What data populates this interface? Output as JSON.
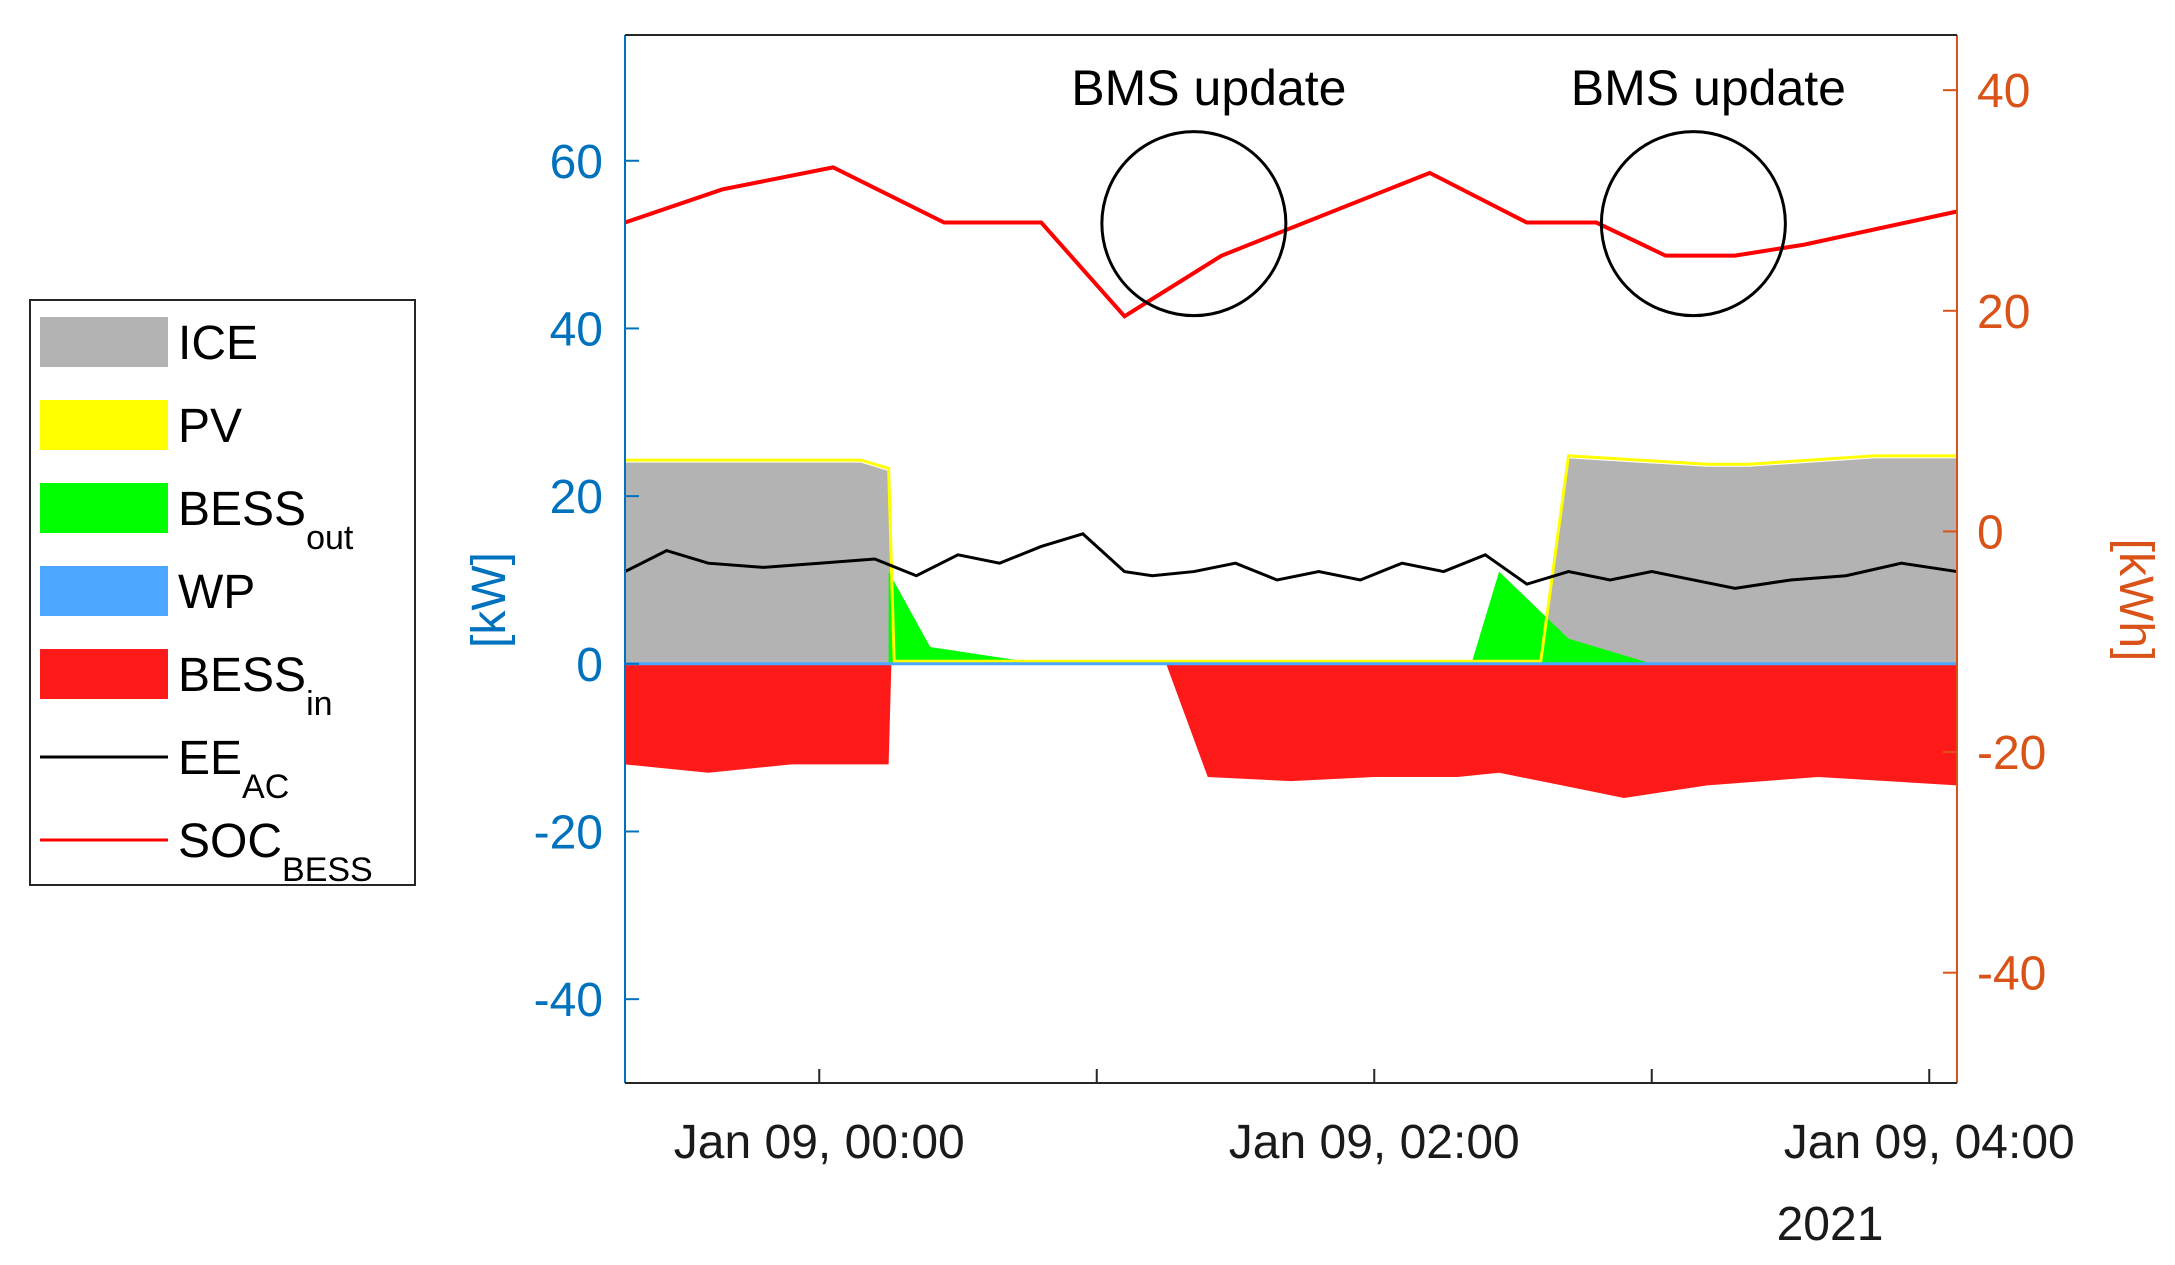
{
  "chart_data": {
    "type": "area",
    "xlabel_year": "2021",
    "x_ticks": [
      "Jan 09, 00:00",
      "Jan 09, 02:00",
      "Jan 09, 04:00"
    ],
    "y_left": {
      "label": "[kW]",
      "ticks": [
        -40,
        -20,
        0,
        20,
        40,
        60
      ],
      "lim": [
        -50,
        75
      ],
      "color": "#0072BD"
    },
    "y_right": {
      "label": "[kWh]",
      "ticks": [
        -40,
        -20,
        0,
        20,
        40
      ],
      "lim": [
        -50,
        45
      ],
      "color": "#D95319"
    },
    "x_range_hours": [
      -0.7,
      4.1
    ],
    "annotations": [
      {
        "text": "BMS update",
        "x_hours": 1.35,
        "y_kw": 52.5
      },
      {
        "text": "BMS update",
        "x_hours": 3.15,
        "y_kw": 52.5
      }
    ],
    "legend": [
      {
        "key": "ICE",
        "label": "ICE",
        "sub": "",
        "kind": "patch",
        "color": "#b3b3b3"
      },
      {
        "key": "PV",
        "label": "PV",
        "sub": "",
        "kind": "patch",
        "color": "#ffff00"
      },
      {
        "key": "BESSout",
        "label": "BESS",
        "sub": "out",
        "kind": "patch",
        "color": "#00ff00"
      },
      {
        "key": "WP",
        "label": "WP",
        "sub": "",
        "kind": "patch",
        "color": "#4da6ff"
      },
      {
        "key": "BESSin",
        "label": "BESS",
        "sub": "in",
        "kind": "patch",
        "color": "#ff1a1a"
      },
      {
        "key": "EEAC",
        "label": "EE",
        "sub": "AC",
        "kind": "line",
        "color": "#000000"
      },
      {
        "key": "SOC",
        "label": "SOC",
        "sub": "BESS",
        "kind": "line",
        "color": "#ff0000"
      }
    ],
    "series": [
      {
        "name": "ICE",
        "axis": "left",
        "x_hours": [
          -0.7,
          -0.4,
          -0.15,
          0.15,
          0.25,
          0.27,
          2.6,
          2.7,
          3.2,
          3.35,
          3.8,
          4.1
        ],
        "values": [
          24,
          24,
          24,
          24,
          23,
          0,
          0,
          24.5,
          23.5,
          23.5,
          24.5,
          24.5
        ]
      },
      {
        "name": "PV",
        "axis": "left",
        "x_hours": [
          -0.7,
          0.25,
          0.27,
          2.6,
          2.7,
          4.1
        ],
        "values": [
          0.3,
          0.3,
          0,
          0,
          0.4,
          0.4
        ]
      },
      {
        "name": "BESS_out",
        "axis": "left",
        "x_hours": [
          0.25,
          0.4,
          0.8,
          1.2,
          1.6,
          2.0,
          2.35,
          2.45,
          2.7,
          3.0,
          3.3,
          3.6
        ],
        "values": [
          11,
          2,
          0,
          0,
          0,
          0,
          0,
          11,
          3,
          0,
          0,
          0
        ]
      },
      {
        "name": "WP",
        "axis": "left",
        "x_hours": [
          2.7,
          2.72,
          3.0,
          3.5,
          4.1
        ],
        "values": [
          0,
          -6.5,
          -6.5,
          -6.5,
          -6.5
        ]
      },
      {
        "name": "BESS_in",
        "axis": "left",
        "x_hours": [
          -0.7,
          -0.4,
          -0.1,
          0.2,
          0.25,
          0.26,
          1.25,
          1.4,
          1.7,
          2.0,
          2.3,
          2.45,
          2.75,
          2.9,
          3.2,
          3.6,
          4.1
        ],
        "values": [
          -12,
          -13,
          -12,
          -12,
          -12,
          0,
          0,
          -13.5,
          -14,
          -13.5,
          -13.5,
          -13,
          -15,
          -16,
          -14.5,
          -13.5,
          -14.5
        ]
      },
      {
        "name": "EE_AC",
        "axis": "left",
        "x_hours": [
          -0.7,
          -0.55,
          -0.4,
          -0.2,
          0.0,
          0.2,
          0.35,
          0.5,
          0.65,
          0.8,
          0.95,
          1.1,
          1.2,
          1.35,
          1.5,
          1.65,
          1.8,
          1.95,
          2.1,
          2.25,
          2.4,
          2.55,
          2.7,
          2.85,
          3.0,
          3.15,
          3.3,
          3.5,
          3.7,
          3.9,
          4.1
        ],
        "values": [
          11,
          13.5,
          12,
          11.5,
          12,
          12.5,
          10.5,
          13,
          12,
          14,
          15.5,
          11,
          10.5,
          11,
          12,
          10,
          11,
          10,
          12,
          11,
          13,
          9.5,
          11,
          10,
          11,
          10,
          9,
          10,
          10.5,
          12,
          11
        ]
      },
      {
        "name": "SOC_BESS",
        "axis": "right",
        "x_hours": [
          -0.7,
          -0.35,
          0.05,
          0.45,
          0.8,
          1.1,
          1.45,
          2.2,
          2.55,
          2.8,
          3.05,
          3.3,
          3.55,
          4.1
        ],
        "values": [
          28,
          31,
          33,
          28,
          28,
          19.5,
          25,
          32.5,
          28,
          28,
          25,
          25,
          26,
          29
        ]
      }
    ]
  }
}
